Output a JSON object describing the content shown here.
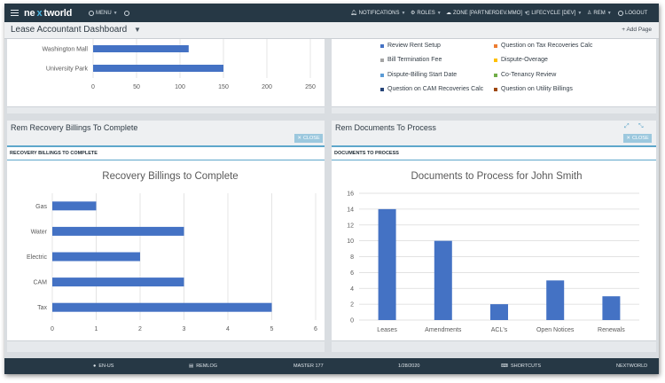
{
  "topbar": {
    "logo": {
      "prefix": "ne",
      "accent": "x",
      "suffix": "tworld"
    },
    "menu_label": "MENU",
    "notifications_label": "NOTIFICATIONS",
    "roles_label": "ROLES",
    "zone_label": "ZONE [PARTNERDEV.MMO]",
    "lifecycle_label": "LIFECYCLE [DEV]",
    "user_label": "REM",
    "logout_label": "LOGOUT"
  },
  "titlebar": {
    "title": "Lease Accountant Dashboard",
    "add_page": "+ Add Page"
  },
  "top_left_card": {
    "categories": [
      "Washington Mall",
      "University Park"
    ],
    "values": [
      110,
      150
    ],
    "ticks": [
      "0",
      "50",
      "100",
      "150",
      "200",
      "250"
    ]
  },
  "top_right_card": {
    "legend": [
      {
        "label": "Review Rent Setup",
        "color": "#4472c4"
      },
      {
        "label": "Question on Tax Recoveries Calc",
        "color": "#ed7d31"
      },
      {
        "label": "Bill Termination Fee",
        "color": "#a5a5a5"
      },
      {
        "label": "Dispute-Overage",
        "color": "#ffc000"
      },
      {
        "label": "Dispute-Billing Start Date",
        "color": "#5b9bd5"
      },
      {
        "label": "Co-Tenancy Review",
        "color": "#70ad47"
      },
      {
        "label": "Question on CAM Recoveries Calc",
        "color": "#264478"
      },
      {
        "label": "Question on Utility Billings",
        "color": "#9e480e"
      }
    ]
  },
  "recovery_card": {
    "title": "Rem Recovery Billings To Complete",
    "close_label": "CLOSE",
    "subheader": "RECOVERY BILLINGS TO COMPLETE"
  },
  "documents_card": {
    "title": "Rem Documents To Process",
    "close_label": "CLOSE",
    "subheader": "DOCUMENTS TO PROCESS"
  },
  "chart_data": [
    {
      "type": "bar",
      "orientation": "horizontal",
      "title": "",
      "categories": [
        "Washington Mall",
        "University Park"
      ],
      "values": [
        110,
        150
      ],
      "xlim": [
        0,
        250
      ],
      "ticks": [
        0,
        50,
        100,
        150,
        200,
        250
      ],
      "color": "#4472c4",
      "grid": true
    },
    {
      "type": "bar",
      "orientation": "horizontal",
      "title": "Recovery Billings to Complete",
      "categories": [
        "Gas",
        "Water",
        "Electric",
        "CAM",
        "Tax"
      ],
      "values": [
        1,
        3,
        2,
        3,
        5
      ],
      "xlim": [
        0,
        6
      ],
      "ticks": [
        0,
        1,
        2,
        3,
        4,
        5,
        6
      ],
      "color": "#4472c4",
      "grid": true
    },
    {
      "type": "bar",
      "orientation": "vertical",
      "title": "Documents to Process for John Smith",
      "categories": [
        "Leases",
        "Amendments",
        "ACL's",
        "Open Notices",
        "Renewals"
      ],
      "values": [
        14,
        10,
        2,
        5,
        3
      ],
      "ylim": [
        0,
        16
      ],
      "ticks": [
        0,
        2,
        4,
        6,
        8,
        10,
        12,
        14,
        16
      ],
      "color": "#4472c4",
      "grid": true
    }
  ],
  "footer": {
    "locale": "EN-US",
    "remlog": "REMLOG",
    "master": "MASTER 177",
    "date": "1/28/2020",
    "shortcuts": "SHORTCUTS",
    "brand": "NEXTWORLD"
  }
}
